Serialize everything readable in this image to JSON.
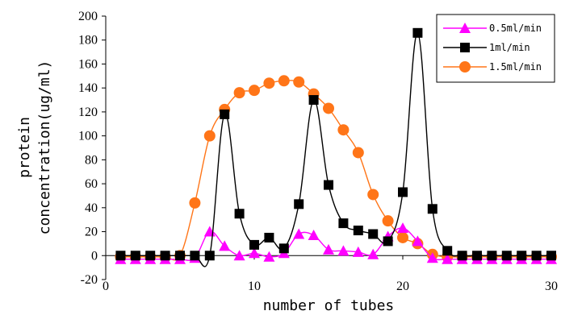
{
  "chart_data": {
    "type": "line",
    "xlabel": "number of tubes",
    "ylabel_lines": [
      "protein",
      "concentration(ug/ml)"
    ],
    "xlim": [
      0,
      30
    ],
    "ylim": [
      -20,
      200
    ],
    "xticks": [
      0,
      10,
      20,
      30
    ],
    "yticks": [
      -20,
      0,
      20,
      40,
      60,
      80,
      100,
      120,
      140,
      160,
      180,
      200
    ],
    "grid": false,
    "legend_position": "top-right",
    "series": [
      {
        "name": "0.5ml/min",
        "color": "#FF00FF",
        "marker": "triangle",
        "x": [
          1,
          2,
          3,
          4,
          5,
          6,
          7,
          8,
          9,
          10,
          11,
          12,
          13,
          14,
          15,
          16,
          17,
          18,
          19,
          20,
          21,
          22,
          23,
          24,
          25,
          26,
          27,
          28,
          29,
          30
        ],
        "y": [
          -3,
          -3,
          -3,
          -3,
          -3,
          -2,
          20,
          8,
          0,
          2,
          -1,
          2,
          18,
          17,
          5,
          4,
          3,
          1,
          16,
          23,
          12,
          -2,
          -3,
          -3,
          -3,
          -3,
          -3,
          -3,
          -3,
          -3
        ]
      },
      {
        "name": "1ml/min",
        "color": "#000000",
        "marker": "square",
        "x": [
          1,
          2,
          3,
          4,
          5,
          6,
          7,
          8,
          9,
          10,
          11,
          12,
          13,
          14,
          15,
          16,
          17,
          18,
          19,
          20,
          21,
          22,
          23,
          24,
          25,
          26,
          27,
          28,
          29,
          30
        ],
        "y": [
          0,
          0,
          0,
          0,
          0,
          0,
          0,
          118,
          35,
          9,
          15,
          6,
          43,
          130,
          59,
          27,
          21,
          18,
          12,
          53,
          186,
          39,
          4,
          0,
          0,
          0,
          0,
          0,
          0,
          0
        ]
      },
      {
        "name": "1.5ml/min",
        "color": "#FF7518",
        "marker": "circle",
        "x": [
          1,
          2,
          3,
          4,
          5,
          6,
          7,
          8,
          9,
          10,
          11,
          12,
          13,
          14,
          15,
          16,
          17,
          18,
          19,
          20,
          21,
          22,
          23,
          24,
          25,
          26,
          27,
          28,
          29,
          30
        ],
        "y": [
          -1,
          -1,
          -1,
          -1,
          0,
          44,
          100,
          122,
          136,
          138,
          144,
          146,
          145,
          135,
          123,
          105,
          86,
          51,
          29,
          15,
          10,
          1,
          -1,
          -1,
          -1,
          -1,
          -1,
          -1,
          -1,
          -1
        ]
      }
    ]
  }
}
